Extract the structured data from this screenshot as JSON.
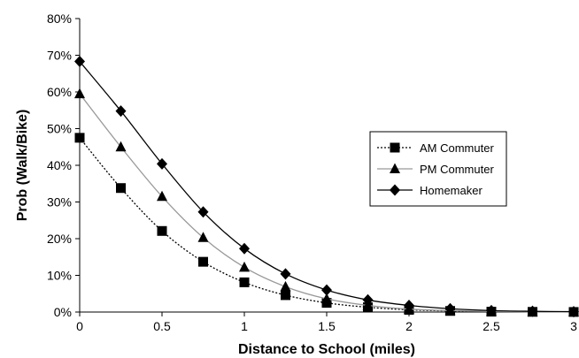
{
  "chart_data": {
    "type": "line",
    "title": "",
    "xlabel": "Distance to School (miles)",
    "ylabel": "Prob (Walk/Bike)",
    "xlim": [
      0,
      3
    ],
    "ylim": [
      0,
      80
    ],
    "x_ticks": [
      0,
      0.5,
      1,
      1.5,
      2,
      2.5,
      3
    ],
    "x_tick_labels": [
      "0",
      "0.5",
      "1",
      "1.5",
      "2",
      "2.5",
      "3"
    ],
    "y_ticks": [
      0,
      10,
      20,
      30,
      40,
      50,
      60,
      70,
      80
    ],
    "y_tick_labels": [
      "0%",
      "10%",
      "20%",
      "30%",
      "40%",
      "50%",
      "60%",
      "70%",
      "80%"
    ],
    "y_unit": "%",
    "grid": false,
    "legend_position": "right-middle",
    "x": [
      0,
      0.25,
      0.5,
      0.75,
      1,
      1.25,
      1.5,
      1.75,
      2,
      2.25,
      2.5,
      2.75,
      3
    ],
    "series": [
      {
        "name": "AM Commuter",
        "marker": "square",
        "line_style": "dotted",
        "color": "#000000",
        "values": [
          47.5,
          33.8,
          22.1,
          13.7,
          8.1,
          4.6,
          2.5,
          1.3,
          0.6,
          0.3,
          0.1,
          0.05,
          0.02
        ]
      },
      {
        "name": "PM Commuter",
        "marker": "triangle",
        "line_style": "solid",
        "color": "#999999",
        "values": [
          59.5,
          45.0,
          31.5,
          20.3,
          12.2,
          6.9,
          3.6,
          1.8,
          0.8,
          0.4,
          0.15,
          0.07,
          0.03
        ]
      },
      {
        "name": "Homemaker",
        "marker": "diamond",
        "line_style": "solid",
        "color": "#000000",
        "values": [
          68.3,
          54.8,
          40.4,
          27.3,
          17.3,
          10.4,
          6.0,
          3.3,
          1.8,
          0.9,
          0.4,
          0.2,
          0.1
        ]
      }
    ]
  }
}
